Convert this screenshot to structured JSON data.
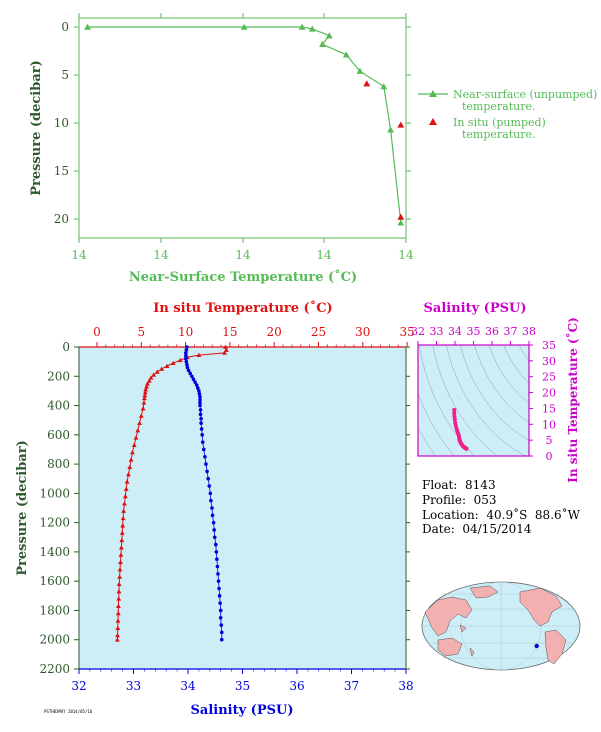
{
  "chart_data": [
    {
      "type": "line",
      "name_key": "top",
      "xlabel": "Near-Surface Temperature (˚C)",
      "ylabel": "Pressure (decibar)",
      "x_tick_labels": [
        "14",
        "14",
        "14",
        "14",
        "14"
      ],
      "y_tick_labels": [
        "0",
        "5",
        "10",
        "15",
        "20"
      ],
      "ylim": [
        0,
        22
      ],
      "series": [
        {
          "name": "Near-surface (unpumped) temperature.",
          "color": "#55bb55",
          "marker": "triangle",
          "points": [
            {
              "x": 14.05,
              "y": 0.0
            },
            {
              "x": 14.51,
              "y": 0.0
            },
            {
              "x": 14.68,
              "y": 0.0
            },
            {
              "x": 14.71,
              "y": 0.2
            },
            {
              "x": 14.76,
              "y": 0.9
            },
            {
              "x": 14.74,
              "y": 1.8
            },
            {
              "x": 14.81,
              "y": 2.9
            },
            {
              "x": 14.85,
              "y": 4.6
            },
            {
              "x": 14.92,
              "y": 6.2
            },
            {
              "x": 14.94,
              "y": 10.7
            },
            {
              "x": 14.97,
              "y": 20.4
            }
          ]
        },
        {
          "name": "In situ (pumped) temperature.",
          "color": "#dd1111",
          "marker": "triangle",
          "points": [
            {
              "x": 14.87,
              "y": 5.9
            },
            {
              "x": 14.97,
              "y": 10.2
            },
            {
              "x": 14.97,
              "y": 19.8
            }
          ]
        }
      ],
      "legend": [
        {
          "line1": "Near-surface (unpumped)",
          "line2": "temperature."
        },
        {
          "line1": "In situ (pumped)",
          "line2": "temperature."
        }
      ],
      "legend_position": "right"
    },
    {
      "type": "scatter",
      "name_key": "main",
      "top_axis_label": "In situ Temperature (˚C)",
      "bottom_axis_label": "Salinity (PSU)",
      "ylabel": "Pressure (decibar)",
      "temp_ticks": [
        0,
        5,
        10,
        15,
        20,
        25,
        30,
        35
      ],
      "sal_ticks": [
        32,
        33,
        34,
        35,
        36,
        37,
        38
      ],
      "pres_ticks": [
        0,
        200,
        400,
        600,
        800,
        1000,
        1200,
        1400,
        1600,
        1800,
        2000,
        2200
      ],
      "xlim_temp": [
        -1,
        35
      ],
      "xlim_sal": [
        32,
        38
      ],
      "ylim": [
        0,
        2200
      ],
      "temperature_profile": [
        {
          "p": 0,
          "v": 14.5
        },
        {
          "p": 20,
          "v": 14.6
        },
        {
          "p": 40,
          "v": 14.4
        },
        {
          "p": 55,
          "v": 11.5
        },
        {
          "p": 70,
          "v": 10.2
        },
        {
          "p": 90,
          "v": 9.4
        },
        {
          "p": 110,
          "v": 8.6
        },
        {
          "p": 130,
          "v": 7.9
        },
        {
          "p": 150,
          "v": 7.3
        },
        {
          "p": 170,
          "v": 6.8
        },
        {
          "p": 190,
          "v": 6.4
        },
        {
          "p": 210,
          "v": 6.1
        },
        {
          "p": 230,
          "v": 5.9
        },
        {
          "p": 250,
          "v": 5.7
        },
        {
          "p": 270,
          "v": 5.6
        },
        {
          "p": 290,
          "v": 5.5
        },
        {
          "p": 310,
          "v": 5.45
        },
        {
          "p": 330,
          "v": 5.4
        },
        {
          "p": 350,
          "v": 5.35
        },
        {
          "p": 380,
          "v": 5.3
        },
        {
          "p": 420,
          "v": 5.2
        },
        {
          "p": 470,
          "v": 5.0
        },
        {
          "p": 520,
          "v": 4.8
        },
        {
          "p": 570,
          "v": 4.6
        },
        {
          "p": 620,
          "v": 4.4
        },
        {
          "p": 670,
          "v": 4.2
        },
        {
          "p": 720,
          "v": 4.0
        },
        {
          "p": 770,
          "v": 3.85
        },
        {
          "p": 820,
          "v": 3.7
        },
        {
          "p": 870,
          "v": 3.55
        },
        {
          "p": 920,
          "v": 3.4
        },
        {
          "p": 970,
          "v": 3.3
        },
        {
          "p": 1020,
          "v": 3.2
        },
        {
          "p": 1070,
          "v": 3.1
        },
        {
          "p": 1120,
          "v": 3.0
        },
        {
          "p": 1170,
          "v": 2.95
        },
        {
          "p": 1220,
          "v": 2.9
        },
        {
          "p": 1270,
          "v": 2.85
        },
        {
          "p": 1320,
          "v": 2.8
        },
        {
          "p": 1370,
          "v": 2.75
        },
        {
          "p": 1420,
          "v": 2.7
        },
        {
          "p": 1470,
          "v": 2.65
        },
        {
          "p": 1520,
          "v": 2.6
        },
        {
          "p": 1570,
          "v": 2.55
        },
        {
          "p": 1620,
          "v": 2.5
        },
        {
          "p": 1670,
          "v": 2.48
        },
        {
          "p": 1720,
          "v": 2.45
        },
        {
          "p": 1770,
          "v": 2.42
        },
        {
          "p": 1820,
          "v": 2.4
        },
        {
          "p": 1870,
          "v": 2.37
        },
        {
          "p": 1920,
          "v": 2.35
        },
        {
          "p": 1970,
          "v": 2.32
        },
        {
          "p": 2000,
          "v": 2.3
        }
      ],
      "salinity_profile": [
        {
          "p": 0,
          "v": 33.98
        },
        {
          "p": 20,
          "v": 33.97
        },
        {
          "p": 40,
          "v": 33.96
        },
        {
          "p": 60,
          "v": 33.96
        },
        {
          "p": 80,
          "v": 33.96
        },
        {
          "p": 100,
          "v": 33.97
        },
        {
          "p": 120,
          "v": 33.98
        },
        {
          "p": 140,
          "v": 33.99
        },
        {
          "p": 160,
          "v": 34.01
        },
        {
          "p": 180,
          "v": 34.04
        },
        {
          "p": 200,
          "v": 34.07
        },
        {
          "p": 220,
          "v": 34.1
        },
        {
          "p": 240,
          "v": 34.13
        },
        {
          "p": 260,
          "v": 34.16
        },
        {
          "p": 280,
          "v": 34.18
        },
        {
          "p": 300,
          "v": 34.2
        },
        {
          "p": 320,
          "v": 34.21
        },
        {
          "p": 340,
          "v": 34.22
        },
        {
          "p": 360,
          "v": 34.22
        },
        {
          "p": 380,
          "v": 34.22
        },
        {
          "p": 400,
          "v": 34.22
        },
        {
          "p": 430,
          "v": 34.23
        },
        {
          "p": 460,
          "v": 34.23
        },
        {
          "p": 490,
          "v": 34.24
        },
        {
          "p": 520,
          "v": 34.24
        },
        {
          "p": 560,
          "v": 34.25
        },
        {
          "p": 600,
          "v": 34.26
        },
        {
          "p": 650,
          "v": 34.27
        },
        {
          "p": 700,
          "v": 34.29
        },
        {
          "p": 750,
          "v": 34.31
        },
        {
          "p": 800,
          "v": 34.33
        },
        {
          "p": 850,
          "v": 34.35
        },
        {
          "p": 900,
          "v": 34.37
        },
        {
          "p": 950,
          "v": 34.39
        },
        {
          "p": 1000,
          "v": 34.41
        },
        {
          "p": 1050,
          "v": 34.42
        },
        {
          "p": 1100,
          "v": 34.44
        },
        {
          "p": 1150,
          "v": 34.45
        },
        {
          "p": 1200,
          "v": 34.47
        },
        {
          "p": 1250,
          "v": 34.48
        },
        {
          "p": 1300,
          "v": 34.49
        },
        {
          "p": 1350,
          "v": 34.51
        },
        {
          "p": 1400,
          "v": 34.52
        },
        {
          "p": 1450,
          "v": 34.53
        },
        {
          "p": 1500,
          "v": 34.54
        },
        {
          "p": 1550,
          "v": 34.55
        },
        {
          "p": 1600,
          "v": 34.56
        },
        {
          "p": 1650,
          "v": 34.57
        },
        {
          "p": 1700,
          "v": 34.58
        },
        {
          "p": 1750,
          "v": 34.59
        },
        {
          "p": 1800,
          "v": 34.6
        },
        {
          "p": 1850,
          "v": 34.6
        },
        {
          "p": 1900,
          "v": 34.61
        },
        {
          "p": 1950,
          "v": 34.62
        },
        {
          "p": 2000,
          "v": 34.62
        }
      ]
    },
    {
      "type": "scatter",
      "name_key": "ts",
      "top_axis_label": "Salinity (PSU)",
      "right_axis_label": "In situ Temperature (˚C)",
      "sal_ticks": [
        32,
        33,
        34,
        35,
        36,
        37,
        38
      ],
      "temp_ticks": [
        0,
        5,
        10,
        15,
        20,
        25,
        30,
        35
      ],
      "xlim": [
        32,
        38
      ],
      "ylim": [
        0,
        35
      ],
      "points": [
        {
          "s": 33.96,
          "t": 14.5
        },
        {
          "s": 33.96,
          "t": 13.5
        },
        {
          "s": 33.97,
          "t": 12.5
        },
        {
          "s": 33.99,
          "t": 11.5
        },
        {
          "s": 34.01,
          "t": 10.5
        },
        {
          "s": 34.04,
          "t": 9.6
        },
        {
          "s": 34.08,
          "t": 8.7
        },
        {
          "s": 34.12,
          "t": 7.9
        },
        {
          "s": 34.16,
          "t": 7.2
        },
        {
          "s": 34.2,
          "t": 6.6
        },
        {
          "s": 34.22,
          "t": 6.0
        },
        {
          "s": 34.23,
          "t": 5.5
        },
        {
          "s": 34.25,
          "t": 5.0
        },
        {
          "s": 34.28,
          "t": 4.5
        },
        {
          "s": 34.32,
          "t": 4.0
        },
        {
          "s": 34.37,
          "t": 3.6
        },
        {
          "s": 34.42,
          "t": 3.2
        },
        {
          "s": 34.47,
          "t": 2.9
        },
        {
          "s": 34.51,
          "t": 2.7
        },
        {
          "s": 34.55,
          "t": 2.55
        },
        {
          "s": 34.58,
          "t": 2.45
        },
        {
          "s": 34.61,
          "t": 2.35
        },
        {
          "s": 34.62,
          "t": 2.3
        }
      ]
    }
  ],
  "float_info": {
    "float": "Float:  8143",
    "profile": "Profile:  053",
    "location": "Location:  40.9˚S  88.6˚W",
    "date": "Date:  04/15/2014"
  },
  "map": {
    "float_position": {
      "lat": -40.9,
      "lon": -88.6
    }
  },
  "footer_note": "PSTH83MAY 2014/05/16",
  "colors": {
    "top_green": "#55bb55",
    "red": "#dd1111",
    "blue": "#0000dd",
    "magenta": "#cc00cc",
    "pink": "#ee2288",
    "dark_green_text": "#2d5a2d",
    "plot_bg": "#cdeef6",
    "land": "#f2b0b0"
  }
}
